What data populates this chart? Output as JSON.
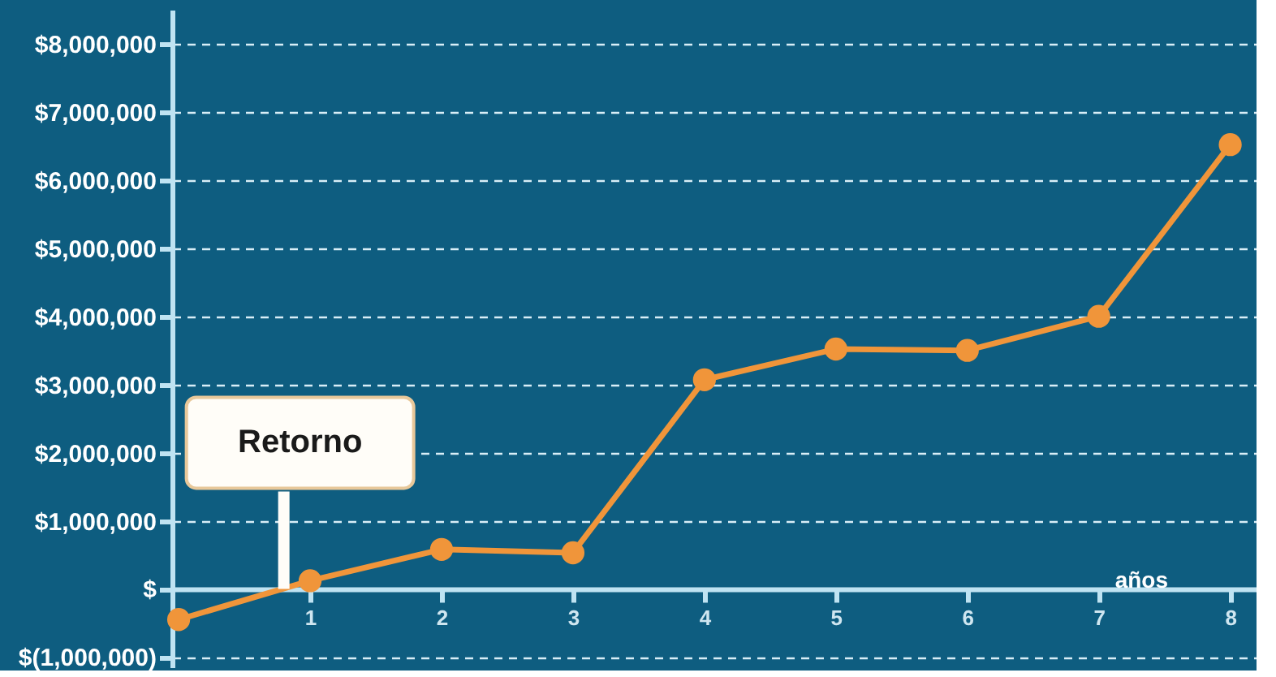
{
  "chart_data": {
    "type": "line",
    "xlabel": "años",
    "x": [
      0,
      1,
      2,
      3,
      4,
      5,
      6,
      7,
      8
    ],
    "series": [
      {
        "color": "#f0953a",
        "values": [
          -450000,
          120000,
          580000,
          530000,
          3070000,
          3520000,
          3500000,
          4000000,
          6520000
        ]
      }
    ],
    "xlim": [
      -0.05,
      8.2
    ],
    "xticks": [
      1,
      2,
      3,
      4,
      5,
      6,
      7,
      8
    ],
    "ylim": [
      -1150000,
      8500000
    ],
    "yticks": [
      {
        "value": -1000000,
        "label": "$(1,000,000)"
      },
      {
        "value": 0,
        "label": "$"
      },
      {
        "value": 1000000,
        "label": "$1,000,000"
      },
      {
        "value": 2000000,
        "label": "$2,000,000"
      },
      {
        "value": 3000000,
        "label": "$3,000,000"
      },
      {
        "value": 4000000,
        "label": "$4,000,000"
      },
      {
        "value": 5000000,
        "label": "$5,000,000"
      },
      {
        "value": 6000000,
        "label": "$6,000,000"
      },
      {
        "value": 7000000,
        "label": "$7,000,000"
      },
      {
        "value": 8000000,
        "label": "$8,000,000"
      }
    ],
    "annotations": [
      {
        "text": "Retorno",
        "x": 0.8,
        "y": 0
      }
    ],
    "grid": "y",
    "marker": "circle",
    "line_style": "solid"
  }
}
